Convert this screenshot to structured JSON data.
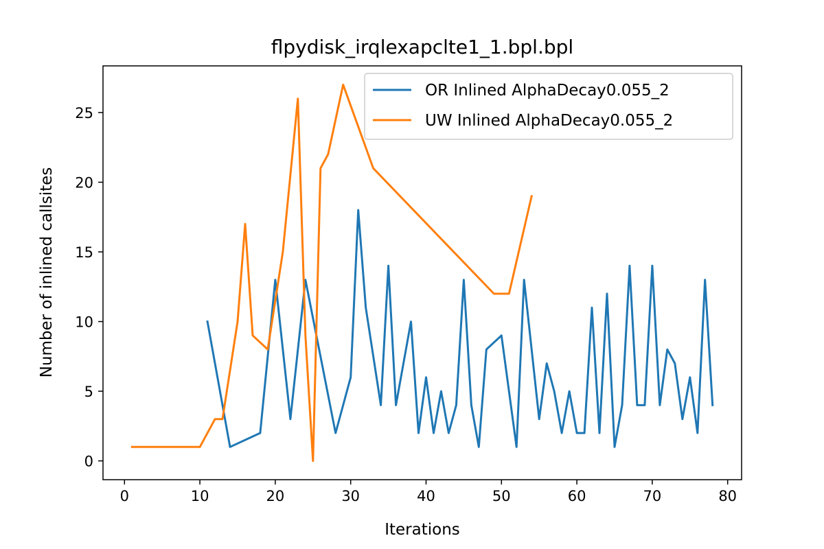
{
  "chart_data": {
    "type": "line",
    "title": "flpydisk_irqlexapclte1_1.bpl.bpl",
    "xlabel": "Iterations",
    "ylabel": "Number of inlined callsites",
    "xlim": [
      -2.85,
      81.85
    ],
    "ylim": [
      -1.35,
      28.35
    ],
    "xticks": [
      0,
      10,
      20,
      30,
      40,
      50,
      60,
      70,
      80
    ],
    "yticks": [
      0,
      5,
      10,
      15,
      20,
      25
    ],
    "grid": false,
    "legend_position": "top-right",
    "series": [
      {
        "name": "OR Inlined AlphaDecay0.055_2",
        "color": "#1f77b4",
        "x": [
          11,
          14,
          18,
          20,
          22,
          24,
          28,
          30,
          31,
          32,
          34,
          35,
          36,
          38,
          39,
          40,
          41,
          42,
          43,
          44,
          45,
          46,
          47,
          48,
          50,
          52,
          53,
          55,
          56,
          57,
          58,
          59,
          60,
          61,
          62,
          63,
          64,
          65,
          66,
          67,
          68,
          69,
          70,
          71,
          72,
          73,
          74,
          75,
          76,
          77,
          78
        ],
        "y": [
          10,
          1,
          2,
          13,
          3,
          13,
          2,
          6,
          18,
          11,
          4,
          14,
          4,
          10,
          2,
          6,
          2,
          5,
          2,
          4,
          13,
          4,
          1,
          8,
          9,
          1,
          13,
          3,
          7,
          5,
          2,
          5,
          2,
          2,
          11,
          2,
          12,
          1,
          4,
          14,
          4,
          4,
          14,
          4,
          8,
          7,
          3,
          6,
          2,
          13,
          4
        ]
      },
      {
        "name": "UW Inlined AlphaDecay0.055_2",
        "color": "#ff7f0e",
        "x": [
          1,
          10,
          12,
          13,
          15,
          16,
          17,
          19,
          21,
          23,
          24,
          25,
          26,
          27,
          29,
          33,
          49,
          51,
          54
        ],
        "y": [
          1,
          1,
          3,
          3,
          10,
          17,
          9,
          8,
          15,
          26,
          9,
          0,
          21,
          22,
          27,
          21,
          12,
          12,
          19
        ]
      }
    ]
  }
}
